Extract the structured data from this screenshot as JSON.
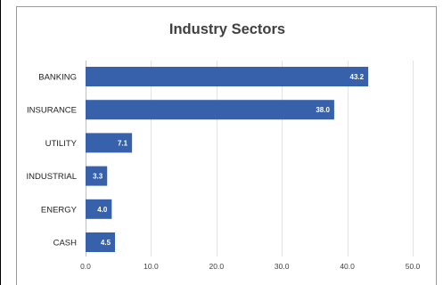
{
  "chart_data": {
    "type": "bar",
    "orientation": "horizontal",
    "title": "Industry Sectors",
    "xlabel": "",
    "ylabel": "",
    "categories": [
      "BANKING",
      "INSURANCE",
      "UTILITY",
      "INDUSTRIAL",
      "ENERGY",
      "CASH"
    ],
    "values": [
      43.2,
      38.0,
      7.1,
      3.3,
      4.0,
      4.5
    ],
    "value_labels": [
      "43.2",
      "38.0",
      "7.1",
      "3.3",
      "4.0",
      "4.5"
    ],
    "xlim": [
      0,
      50
    ],
    "x_ticks": [
      0,
      10,
      20,
      30,
      40,
      50
    ],
    "x_tick_labels": [
      "0.0",
      "10.0",
      "20.0",
      "30.0",
      "40.0",
      "50.0"
    ],
    "grid": "vertical",
    "legend": "none",
    "bar_color": "#3762AB",
    "label_inside_color": "#ffffff",
    "label_outside_color": "#000000"
  }
}
